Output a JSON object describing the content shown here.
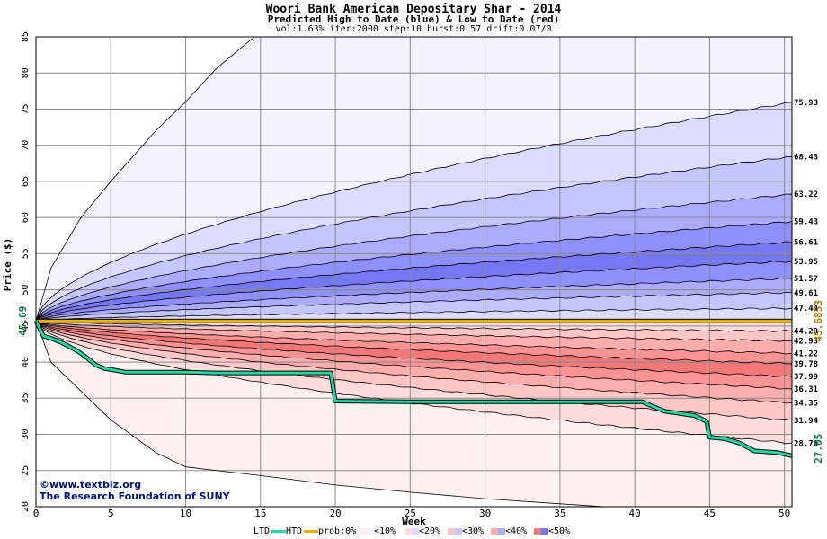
{
  "title": "Woori Bank American Depositary Shar - 2014",
  "subtitle": "Predicted High to Date (blue) &  Low to Date (red)",
  "params": "vol:1.63% iter:2000 step:10 hurst:0.57 drift:0.07/0",
  "credit": {
    "site": "©www.textbiz.org",
    "org": "The Research Foundation of SUNY"
  },
  "legend": {
    "ltd": "LTD",
    "htd": "HTD",
    "prob": "prob:0%",
    "b10": "<10%",
    "b20": "<20%",
    "b30": "<30%",
    "b40": "<40%",
    "b50": "<50%"
  },
  "colors": {
    "htd": "#1fd9a4",
    "prob_line": "#e8b400",
    "blue_bands": [
      "#f3f3ff",
      "#dcdcff",
      "#c6c6ff",
      "#ababff",
      "#8f8fff",
      "#7777f3"
    ],
    "red_bands": [
      "#fff0f0",
      "#ffdcdc",
      "#ffc6c6",
      "#ffadad",
      "#ff9393",
      "#f57878"
    ]
  },
  "chart_data": {
    "type": "area",
    "title": "Woori Bank American Depositary Shar - 2014",
    "subtitle": "Predicted High to Date (blue) &  Low to Date (red)",
    "xlabel": "Week",
    "ylabel": "Price ($)",
    "xlim": [
      0,
      50.5
    ],
    "ylim": [
      20,
      85
    ],
    "xticks": [
      0,
      5,
      10,
      15,
      20,
      25,
      30,
      35,
      40,
      45,
      50
    ],
    "yticks": [
      20,
      25,
      30,
      35,
      40,
      45,
      50,
      55,
      60,
      65,
      70,
      75,
      80,
      85
    ],
    "grid": true,
    "start_price": 45.69,
    "start_label": "45.69",
    "current_price": 45.6853,
    "current_label": "45.6853",
    "last_ltd": 27.05,
    "last_ltd_label": "27.05",
    "high_quantiles": [
      {
        "end": 75.93,
        "label": "75.93"
      },
      {
        "end": 68.43,
        "label": "68.43"
      },
      {
        "end": 63.22,
        "label": "63.22"
      },
      {
        "end": 59.43,
        "label": "59.43"
      },
      {
        "end": 56.61,
        "label": "56.61"
      },
      {
        "end": 53.95,
        "label": "53.95"
      },
      {
        "end": 51.57,
        "label": "51.57"
      },
      {
        "end": 49.61,
        "label": "49.61"
      },
      {
        "end": 47.44,
        "label": "47.44"
      }
    ],
    "low_quantiles": [
      {
        "end": 44.29,
        "label": "44.29"
      },
      {
        "end": 42.93,
        "label": "42.93"
      },
      {
        "end": 41.22,
        "label": "41.22"
      },
      {
        "end": 39.78,
        "label": "39.78"
      },
      {
        "end": 37.99,
        "label": "37.99"
      },
      {
        "end": 36.31,
        "label": "36.31"
      },
      {
        "end": 34.35,
        "label": "34.35"
      },
      {
        "end": 31.94,
        "label": "31.94"
      },
      {
        "end": 28.76,
        "label": "28.76"
      }
    ],
    "outer_high": [
      [
        0,
        45.69
      ],
      [
        1,
        53
      ],
      [
        3,
        60
      ],
      [
        5,
        65
      ],
      [
        8,
        72
      ],
      [
        10,
        76
      ],
      [
        12,
        80.5
      ],
      [
        14,
        84
      ],
      [
        14.6,
        85
      ]
    ],
    "outer_low": [
      [
        0,
        45.69
      ],
      [
        1,
        40
      ],
      [
        3,
        36
      ],
      [
        5,
        32
      ],
      [
        8,
        27.5
      ],
      [
        10,
        25.5
      ],
      [
        15,
        24.3
      ],
      [
        20,
        23
      ],
      [
        25,
        22
      ],
      [
        30,
        21.1
      ],
      [
        35,
        20.4
      ],
      [
        38,
        20
      ]
    ],
    "htd_series": [
      [
        0,
        45.69
      ],
      [
        0.5,
        43.6
      ],
      [
        1,
        43.3
      ],
      [
        1.6,
        42.8
      ],
      [
        2.2,
        42.2
      ],
      [
        2.8,
        41.5
      ],
      [
        3.4,
        40.6
      ],
      [
        4,
        39.6
      ],
      [
        4.6,
        39.1
      ],
      [
        5.2,
        38.9
      ],
      [
        6,
        38.6
      ],
      [
        8,
        38.6
      ],
      [
        10,
        38.6
      ],
      [
        12,
        38.5
      ],
      [
        15,
        38.5
      ],
      [
        18,
        38.5
      ],
      [
        19.7,
        38.5
      ],
      [
        20,
        34.6
      ],
      [
        25,
        34.5
      ],
      [
        30,
        34.5
      ],
      [
        35,
        34.5
      ],
      [
        40.5,
        34.5
      ],
      [
        41.3,
        33.8
      ],
      [
        42,
        33.2
      ],
      [
        44,
        32.6
      ],
      [
        44.8,
        31.8
      ],
      [
        45,
        29.6
      ],
      [
        46,
        29.4
      ],
      [
        47,
        28.8
      ],
      [
        48,
        27.7
      ],
      [
        49.5,
        27.5
      ],
      [
        50.5,
        27.05
      ]
    ],
    "ltd_series": [
      [
        0,
        45.69
      ],
      [
        10,
        45.69
      ],
      [
        20,
        45.69
      ],
      [
        30,
        45.69
      ],
      [
        40,
        45.69
      ],
      [
        50.5,
        45.69
      ]
    ]
  }
}
